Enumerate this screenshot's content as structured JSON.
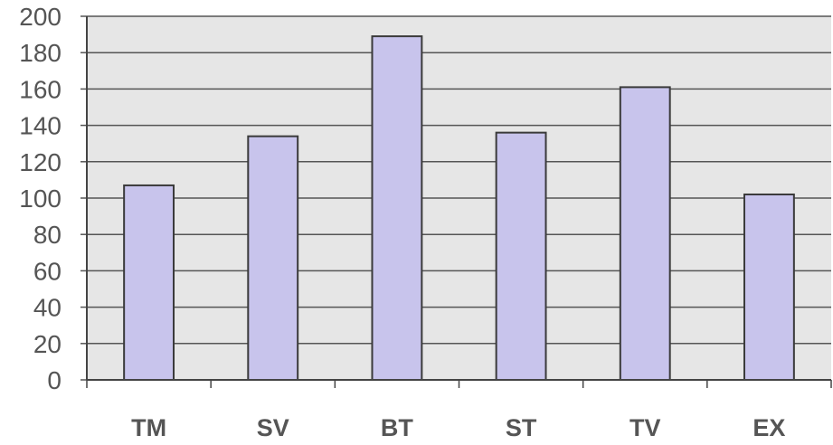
{
  "chart_data": {
    "type": "bar",
    "categories": [
      "TM",
      "SV",
      "BT",
      "ST",
      "TV",
      "EX"
    ],
    "values": [
      107,
      134,
      189,
      136,
      161,
      102
    ],
    "title": "",
    "xlabel": "",
    "ylabel": "",
    "ylim": [
      0,
      200
    ],
    "yticks": [
      0,
      20,
      40,
      60,
      80,
      100,
      120,
      140,
      160,
      180,
      200
    ],
    "grid": true,
    "legend": "none",
    "colors": {
      "bar_fill": "#c8c4ec",
      "bar_stroke": "#3a3a3a",
      "plot_background": "#e6e6e6",
      "gridline": "#555555",
      "text": "#555555"
    }
  }
}
